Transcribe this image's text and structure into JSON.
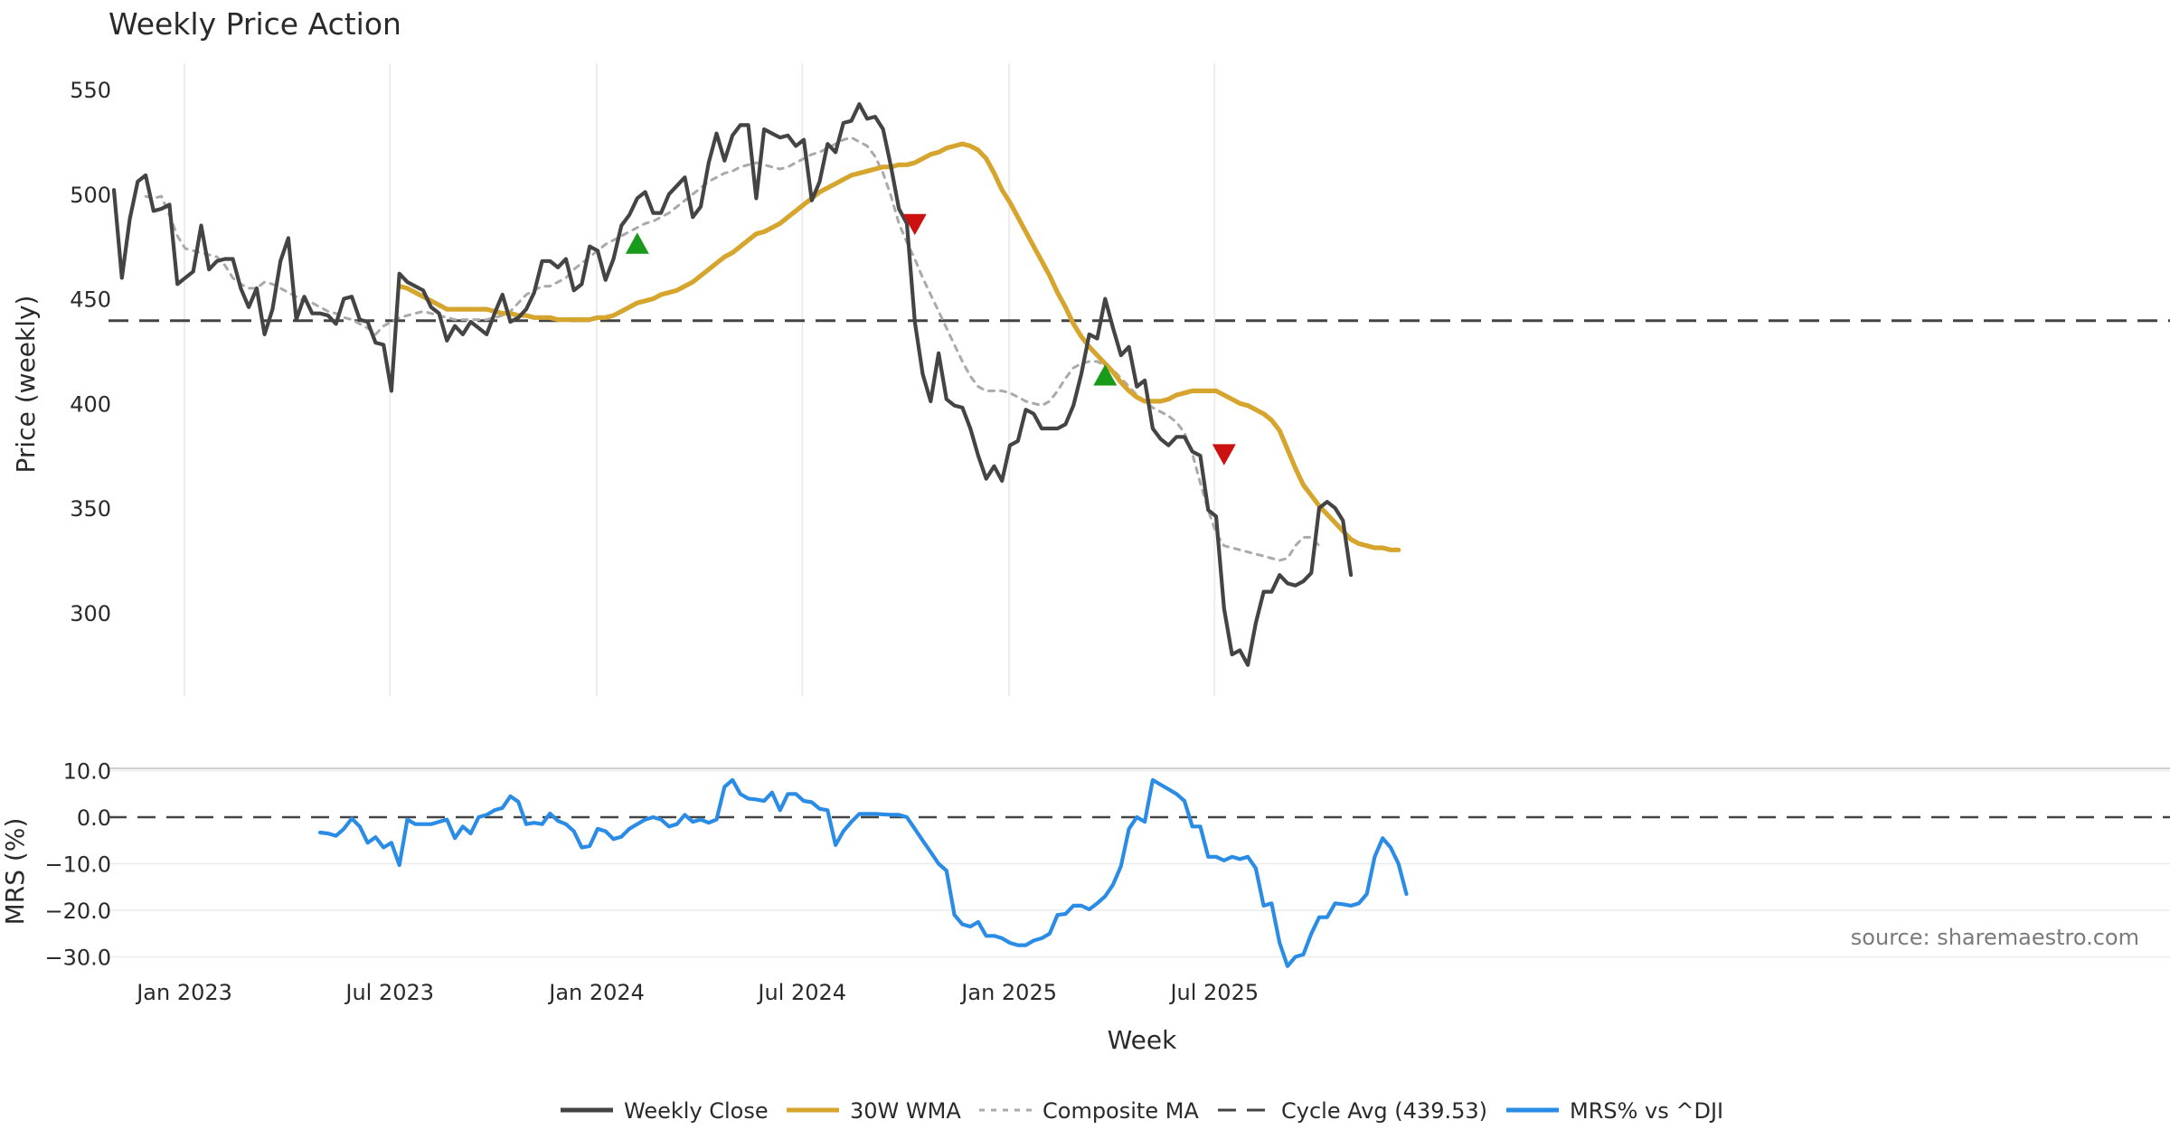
{
  "chart_data": {
    "type": "line",
    "title": "Weekly Price Action",
    "xlabel": "Week",
    "x_ticks": [
      "Jan 2023",
      "Jul 2023",
      "Jan 2024",
      "Jul 2024",
      "Jan 2025",
      "Jul 2025"
    ],
    "start_week": "2022-11-07",
    "price_panel": {
      "ylabel": "Price (weekly)",
      "ylim": [
        256,
        555
      ],
      "yticks": [
        "550",
        "500",
        "450",
        "400",
        "350",
        "300"
      ],
      "ytick_values": [
        550,
        500,
        450,
        400,
        350,
        300
      ],
      "cycle_avg": 439.53,
      "series": [
        {
          "name": "Weekly Close",
          "color": "#444444",
          "start_index": 0,
          "values": [
            502,
            460,
            488,
            506,
            509,
            492,
            493,
            495,
            457,
            460,
            463,
            485,
            464,
            468,
            469,
            469,
            455,
            446,
            455,
            433,
            445,
            468,
            479,
            440,
            451,
            443,
            443,
            442,
            438,
            450,
            451,
            440,
            439,
            429,
            428,
            406,
            462,
            458,
            456,
            454,
            446,
            443,
            430,
            437,
            433,
            439,
            436,
            433,
            443,
            452,
            439,
            441,
            445,
            453,
            468,
            468,
            465,
            469,
            454,
            457,
            475,
            473,
            459,
            469,
            485,
            490,
            498,
            501,
            491,
            491,
            500,
            504,
            508,
            489,
            494,
            515,
            529,
            516,
            528,
            533,
            533,
            498,
            531,
            529,
            527,
            528,
            523,
            526,
            497,
            506,
            524,
            520,
            534,
            535,
            543,
            536,
            537,
            531,
            513,
            493,
            486,
            439,
            414,
            401,
            424,
            402,
            399,
            398,
            388,
            375,
            364,
            370,
            363,
            380,
            382,
            397,
            395,
            388,
            388,
            388,
            390,
            399,
            414,
            433,
            431,
            450,
            436,
            423,
            427,
            408,
            411,
            388,
            383,
            380,
            384,
            384,
            377,
            375,
            349,
            346,
            302,
            280,
            282,
            275,
            295,
            310,
            310,
            318,
            314,
            313,
            315,
            319,
            350,
            353,
            350,
            344,
            318
          ]
        },
        {
          "name": "30W WMA",
          "color": "#d6a52e",
          "start_index": 36,
          "values": [
            456,
            455,
            453,
            451,
            449,
            447,
            445,
            445,
            445,
            445,
            445,
            445,
            444,
            443,
            443,
            442,
            442,
            441,
            441,
            441,
            440,
            440,
            440,
            440,
            440,
            441,
            441,
            442,
            444,
            446,
            448,
            449,
            450,
            452,
            453,
            454,
            456,
            458,
            461,
            464,
            467,
            470,
            472,
            475,
            478,
            481,
            482,
            484,
            486,
            489,
            492,
            495,
            498,
            501,
            503,
            505,
            507,
            509,
            510,
            511,
            512,
            513,
            513,
            514,
            514,
            515,
            517,
            519,
            520,
            522,
            523,
            524,
            523,
            521,
            517,
            510,
            502,
            496,
            489,
            482,
            475,
            468,
            461,
            453,
            446,
            438,
            432,
            427,
            423,
            419,
            415,
            410,
            406,
            403,
            401,
            401,
            401,
            402,
            404,
            405,
            406,
            406,
            406,
            406,
            404,
            402,
            400,
            399,
            397,
            395,
            392,
            387,
            378,
            369,
            361,
            356,
            351,
            347,
            343,
            339,
            335,
            333,
            332,
            331,
            331,
            330,
            330
          ]
        },
        {
          "name": "Composite MA",
          "color": "#aaaaaa",
          "start_index": 4,
          "values": [
            499,
            498,
            499,
            490,
            480,
            474,
            473,
            472,
            471,
            470,
            466,
            460,
            457,
            455,
            455,
            458,
            457,
            455,
            453,
            451,
            449,
            448,
            446,
            444,
            443,
            441,
            440,
            438,
            436,
            433,
            437,
            439,
            441,
            442,
            443,
            444,
            443,
            442,
            441,
            440,
            440,
            440,
            440,
            440,
            441,
            442,
            444,
            448,
            452,
            454,
            456,
            456,
            458,
            460,
            464,
            467,
            470,
            473,
            476,
            478,
            480,
            482,
            484,
            486,
            487,
            489,
            491,
            494,
            497,
            500,
            503,
            506,
            508,
            510,
            511,
            513,
            514,
            515,
            514,
            513,
            512,
            513,
            515,
            517,
            519,
            520,
            522,
            524,
            526,
            527,
            525,
            523,
            518,
            510,
            499,
            486,
            477,
            469,
            460,
            452,
            444,
            436,
            428,
            420,
            413,
            408,
            406,
            406,
            406,
            405,
            403,
            401,
            400,
            399,
            401,
            406,
            412,
            417,
            419,
            420,
            420,
            418,
            416,
            412,
            408,
            404,
            401,
            398,
            396,
            394,
            391,
            386,
            376,
            362,
            349,
            338,
            332,
            331,
            330,
            329,
            328,
            327,
            326,
            325,
            326,
            332,
            336,
            336,
            332
          ]
        }
      ],
      "signals": [
        {
          "type": "buy",
          "index": 66,
          "value": 476,
          "color": "#1a9a1a"
        },
        {
          "type": "sell",
          "index": 101,
          "value": 486,
          "color": "#cc1111"
        },
        {
          "type": "buy",
          "index": 125,
          "value": 413,
          "color": "#1a9a1a"
        },
        {
          "type": "sell",
          "index": 140,
          "value": 376,
          "color": "#cc1111"
        }
      ]
    },
    "mrs_panel": {
      "ylabel": "MRS (%)",
      "ylim": [
        -33,
        12
      ],
      "yticks": [
        "10.0",
        "0.0",
        "−10.0",
        "−20.0",
        "−30.0"
      ],
      "ytick_values": [
        10,
        0,
        -10,
        -20,
        -30
      ],
      "zero_line": 0,
      "series": [
        {
          "name": "MRS% vs ^DJI",
          "color": "#2b8ce6",
          "start_index": 26,
          "values": [
            -3.3,
            -3.5,
            -4,
            -2.5,
            -0.3,
            -2,
            -5.5,
            -4.3,
            -6.5,
            -5.5,
            -10.3,
            -0.5,
            -1.5,
            -1.5,
            -1.5,
            -1,
            -0.5,
            -4.5,
            -2,
            -3.5,
            0,
            0.5,
            1.5,
            2,
            4.5,
            3.3,
            -1.5,
            -1.2,
            -1.5,
            0.8,
            -0.8,
            -1.5,
            -3,
            -6.5,
            -6.2,
            -2.5,
            -3,
            -4.7,
            -4.2,
            -2.5,
            -1.5,
            -0.5,
            0,
            -0.5,
            -2,
            -1.5,
            0.5,
            -1,
            -0.5,
            -1.2,
            -0.5,
            6.5,
            8,
            5,
            4,
            3.8,
            3.5,
            5.3,
            1.5,
            5,
            5,
            3.5,
            3.2,
            1.8,
            1.5,
            -6,
            -3,
            -1,
            0.7,
            0.7,
            0.7,
            0.6,
            0.5,
            0.5,
            0,
            -2.5,
            -5,
            -7.5,
            -10,
            -11.5,
            -21,
            -23,
            -23.5,
            -22.5,
            -25.5,
            -25.5,
            -26,
            -27,
            -27.5,
            -27.5,
            -26.5,
            -26,
            -25,
            -21,
            -20.8,
            -19,
            -19,
            -19.8,
            -18.5,
            -17,
            -14.5,
            -10.5,
            -2.5,
            0,
            -1,
            8,
            7,
            6,
            5,
            3.5,
            -2,
            -2,
            -8.5,
            -8.5,
            -9.3,
            -8.5,
            -9,
            -8.5,
            -11,
            -19,
            -18.5,
            -27,
            -32,
            -30,
            -29.5,
            -25,
            -21.5,
            -21.5,
            -18.5,
            -18.7,
            -19,
            -18.5,
            -16.5,
            -8.5,
            -4.5,
            -6.5,
            -10,
            -16.5
          ]
        }
      ],
      "annotation": "source: sharemaestro.com"
    },
    "legend": [
      {
        "label": "Weekly Close",
        "style": "solid",
        "color": "#444444"
      },
      {
        "label": "30W WMA",
        "style": "solid",
        "color": "#d6a52e"
      },
      {
        "label": "Composite MA",
        "style": "dotted",
        "color": "#aaaaaa"
      },
      {
        "label": "Cycle Avg (439.53)",
        "style": "dashed",
        "color": "#444444"
      },
      {
        "label": "MRS% vs ^DJI",
        "style": "solid",
        "color": "#2b8ce6"
      }
    ],
    "legend_position": "bottom-center"
  }
}
